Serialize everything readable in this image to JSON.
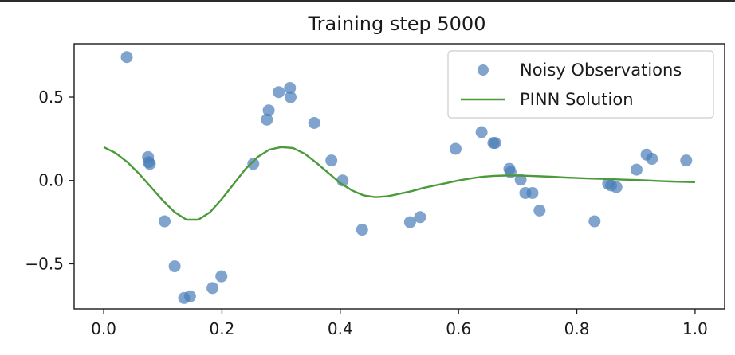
{
  "chart_data": {
    "type": "scatter",
    "title": "Training step 5000",
    "xlabel": "",
    "ylabel": "",
    "xlim": [
      -0.05,
      1.05
    ],
    "ylim": [
      -0.77,
      0.82
    ],
    "x_ticks": [
      0.0,
      0.2,
      0.4,
      0.6,
      0.8,
      1.0
    ],
    "x_tick_labels": [
      "0.0",
      "0.2",
      "0.4",
      "0.6",
      "0.8",
      "1.0"
    ],
    "y_ticks": [
      -0.5,
      0.0,
      0.5
    ],
    "y_tick_labels": [
      "−0.5",
      "0.0",
      "0.5"
    ],
    "grid": false,
    "legend_position": "top-right",
    "colors": {
      "observations": "#4a7db8",
      "solution": "#4a9a3a"
    },
    "series": [
      {
        "name": "Noisy Observations",
        "kind": "scatter",
        "points": [
          {
            "x": 0.039,
            "y": 0.74
          },
          {
            "x": 0.075,
            "y": 0.14
          },
          {
            "x": 0.076,
            "y": 0.11
          },
          {
            "x": 0.078,
            "y": 0.1
          },
          {
            "x": 0.103,
            "y": -0.245
          },
          {
            "x": 0.12,
            "y": -0.515
          },
          {
            "x": 0.136,
            "y": -0.705
          },
          {
            "x": 0.146,
            "y": -0.695
          },
          {
            "x": 0.184,
            "y": -0.645
          },
          {
            "x": 0.199,
            "y": -0.575
          },
          {
            "x": 0.253,
            "y": 0.1
          },
          {
            "x": 0.276,
            "y": 0.365
          },
          {
            "x": 0.279,
            "y": 0.42
          },
          {
            "x": 0.296,
            "y": 0.53
          },
          {
            "x": 0.315,
            "y": 0.555
          },
          {
            "x": 0.316,
            "y": 0.5
          },
          {
            "x": 0.356,
            "y": 0.345
          },
          {
            "x": 0.385,
            "y": 0.12
          },
          {
            "x": 0.404,
            "y": 0.0
          },
          {
            "x": 0.437,
            "y": -0.295
          },
          {
            "x": 0.518,
            "y": -0.25
          },
          {
            "x": 0.535,
            "y": -0.22
          },
          {
            "x": 0.595,
            "y": 0.19
          },
          {
            "x": 0.639,
            "y": 0.29
          },
          {
            "x": 0.659,
            "y": 0.225
          },
          {
            "x": 0.662,
            "y": 0.225
          },
          {
            "x": 0.686,
            "y": 0.07
          },
          {
            "x": 0.688,
            "y": 0.05
          },
          {
            "x": 0.705,
            "y": 0.005
          },
          {
            "x": 0.713,
            "y": -0.075
          },
          {
            "x": 0.725,
            "y": -0.075
          },
          {
            "x": 0.737,
            "y": -0.18
          },
          {
            "x": 0.83,
            "y": -0.245
          },
          {
            "x": 0.853,
            "y": -0.02
          },
          {
            "x": 0.858,
            "y": -0.03
          },
          {
            "x": 0.867,
            "y": -0.04
          },
          {
            "x": 0.901,
            "y": 0.065
          },
          {
            "x": 0.918,
            "y": 0.155
          },
          {
            "x": 0.927,
            "y": 0.13
          },
          {
            "x": 0.985,
            "y": 0.12
          }
        ]
      },
      {
        "name": "PINN Solution",
        "kind": "line",
        "x": [
          0.0,
          0.02,
          0.04,
          0.06,
          0.08,
          0.1,
          0.12,
          0.14,
          0.16,
          0.18,
          0.2,
          0.22,
          0.24,
          0.26,
          0.28,
          0.3,
          0.32,
          0.34,
          0.36,
          0.38,
          0.4,
          0.42,
          0.44,
          0.46,
          0.48,
          0.5,
          0.52,
          0.54,
          0.56,
          0.58,
          0.6,
          0.62,
          0.64,
          0.66,
          0.68,
          0.7,
          0.72,
          0.74,
          0.76,
          0.78,
          0.8,
          0.82,
          0.84,
          0.86,
          0.88,
          0.9,
          0.92,
          0.94,
          0.96,
          0.98,
          1.0
        ],
        "y": [
          0.2,
          0.165,
          0.11,
          0.04,
          -0.04,
          -0.12,
          -0.19,
          -0.235,
          -0.235,
          -0.19,
          -0.11,
          -0.02,
          0.07,
          0.14,
          0.185,
          0.2,
          0.195,
          0.16,
          0.105,
          0.045,
          -0.015,
          -0.06,
          -0.09,
          -0.1,
          -0.095,
          -0.08,
          -0.065,
          -0.045,
          -0.03,
          -0.015,
          0.0,
          0.012,
          0.022,
          0.028,
          0.03,
          0.03,
          0.028,
          0.025,
          0.022,
          0.018,
          0.015,
          0.012,
          0.01,
          0.008,
          0.005,
          0.003,
          0.0,
          -0.003,
          -0.006,
          -0.008,
          -0.01
        ]
      }
    ]
  }
}
